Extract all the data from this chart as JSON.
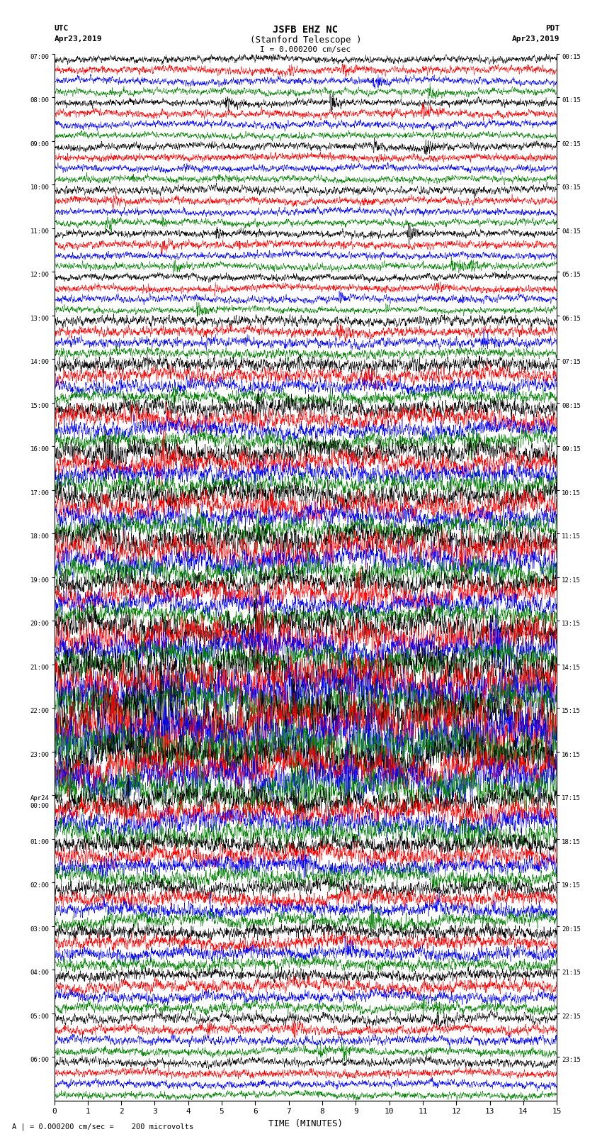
{
  "title_line1": "JSFB EHZ NC",
  "title_line2": "(Stanford Telescope )",
  "scale_text": "I = 0.000200 cm/sec",
  "bottom_text": "A | = 0.000200 cm/sec =    200 microvolts",
  "xlabel": "TIME (MINUTES)",
  "utc_times": [
    "07:00",
    "08:00",
    "09:00",
    "10:00",
    "11:00",
    "12:00",
    "13:00",
    "14:00",
    "15:00",
    "16:00",
    "17:00",
    "18:00",
    "19:00",
    "20:00",
    "21:00",
    "22:00",
    "23:00",
    "Apr24\n00:00",
    "01:00",
    "02:00",
    "03:00",
    "04:00",
    "05:00",
    "06:00"
  ],
  "pdt_times": [
    "00:15",
    "01:15",
    "02:15",
    "03:15",
    "04:15",
    "05:15",
    "06:15",
    "07:15",
    "08:15",
    "09:15",
    "10:15",
    "11:15",
    "12:15",
    "13:15",
    "14:15",
    "15:15",
    "16:15",
    "17:15",
    "18:15",
    "19:15",
    "20:15",
    "21:15",
    "22:15",
    "23:15"
  ],
  "trace_colors": [
    "black",
    "red",
    "blue",
    "green"
  ],
  "n_hours": 24,
  "traces_per_hour": 4,
  "minutes": 15,
  "bg_color": "white",
  "noise_seed": 42,
  "hour_amplitudes": [
    0.28,
    0.28,
    0.28,
    0.28,
    0.28,
    0.28,
    0.38,
    0.55,
    0.7,
    0.8,
    0.9,
    1.0,
    0.85,
    1.2,
    1.5,
    1.8,
    1.4,
    0.9,
    0.7,
    0.6,
    0.55,
    0.45,
    0.35,
    0.3
  ]
}
